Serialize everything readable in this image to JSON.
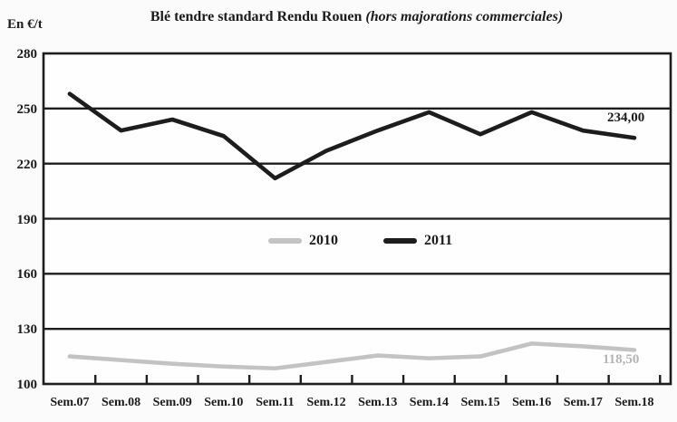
{
  "header": {
    "unit_label": "En €/t",
    "title": "Blé tendre standard Rendu Rouen",
    "subtitle": "(hors majorations commerciales)"
  },
  "colors": {
    "axis": "#1d1d1d",
    "series_2010": "#c3c3c3",
    "series_2011": "#1d1d1d",
    "end_label_2010": "#b4b4b4",
    "end_label_2011": "#1b1b1b",
    "background": "#fbfbfb"
  },
  "chart_data": {
    "type": "line",
    "title": "Blé tendre standard Rendu Rouen",
    "subtitle": "(hors majorations commerciales)",
    "ylabel": "En €/t",
    "xlabel": "",
    "ylim": [
      100,
      280
    ],
    "yticks": [
      280,
      250,
      220,
      190,
      160,
      130,
      100
    ],
    "grid": "horizontal",
    "legend_position": "center-inside",
    "categories": [
      "Sem.07",
      "Sem.08",
      "Sem.09",
      "Sem.10",
      "Sem.11",
      "Sem.12",
      "Sem.13",
      "Sem.14",
      "Sem.15",
      "Sem.16",
      "Sem.17",
      "Sem.18"
    ],
    "series": [
      {
        "name": "2010",
        "color": "#c3c3c3",
        "values": [
          115,
          113,
          111,
          109.5,
          108.5,
          112,
          115.5,
          114,
          115,
          122,
          120.5,
          118.5
        ],
        "end_label": "118,50"
      },
      {
        "name": "2011",
        "color": "#1d1d1d",
        "values": [
          258,
          238,
          244,
          235,
          212,
          227,
          238,
          248,
          236,
          248,
          238,
          234
        ],
        "end_label": "234,00"
      }
    ]
  }
}
